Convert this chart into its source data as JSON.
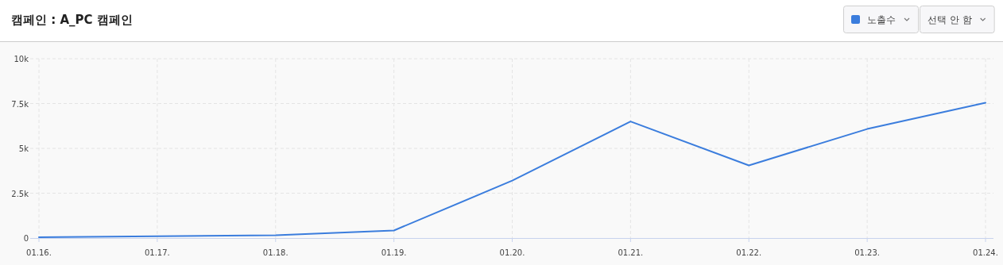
{
  "chart_data": {
    "type": "line",
    "title": "캠페인 : A_PC 캠페인",
    "categories": [
      "01.16.",
      "01.17.",
      "01.18.",
      "01.19.",
      "01.20.",
      "01.21.",
      "01.22.",
      "01.23.",
      "01.24."
    ],
    "series": [
      {
        "name": "노출수",
        "color": "#3b7ddd",
        "values": [
          40,
          100,
          150,
          420,
          3200,
          6500,
          4050,
          6080,
          7540
        ]
      }
    ],
    "ylim": [
      0,
      10000
    ],
    "yticks": [
      0,
      {
        "value": 2500,
        "label": "2.5k"
      },
      {
        "value": 5000,
        "label": "5k"
      },
      {
        "value": 7500,
        "label": "7.5k"
      },
      {
        "value": 10000,
        "label": "10k"
      }
    ],
    "grid": true,
    "legend": "top right",
    "marker": "none",
    "line_style": "solid",
    "annotations": [
      "선택 안 함"
    ]
  }
}
